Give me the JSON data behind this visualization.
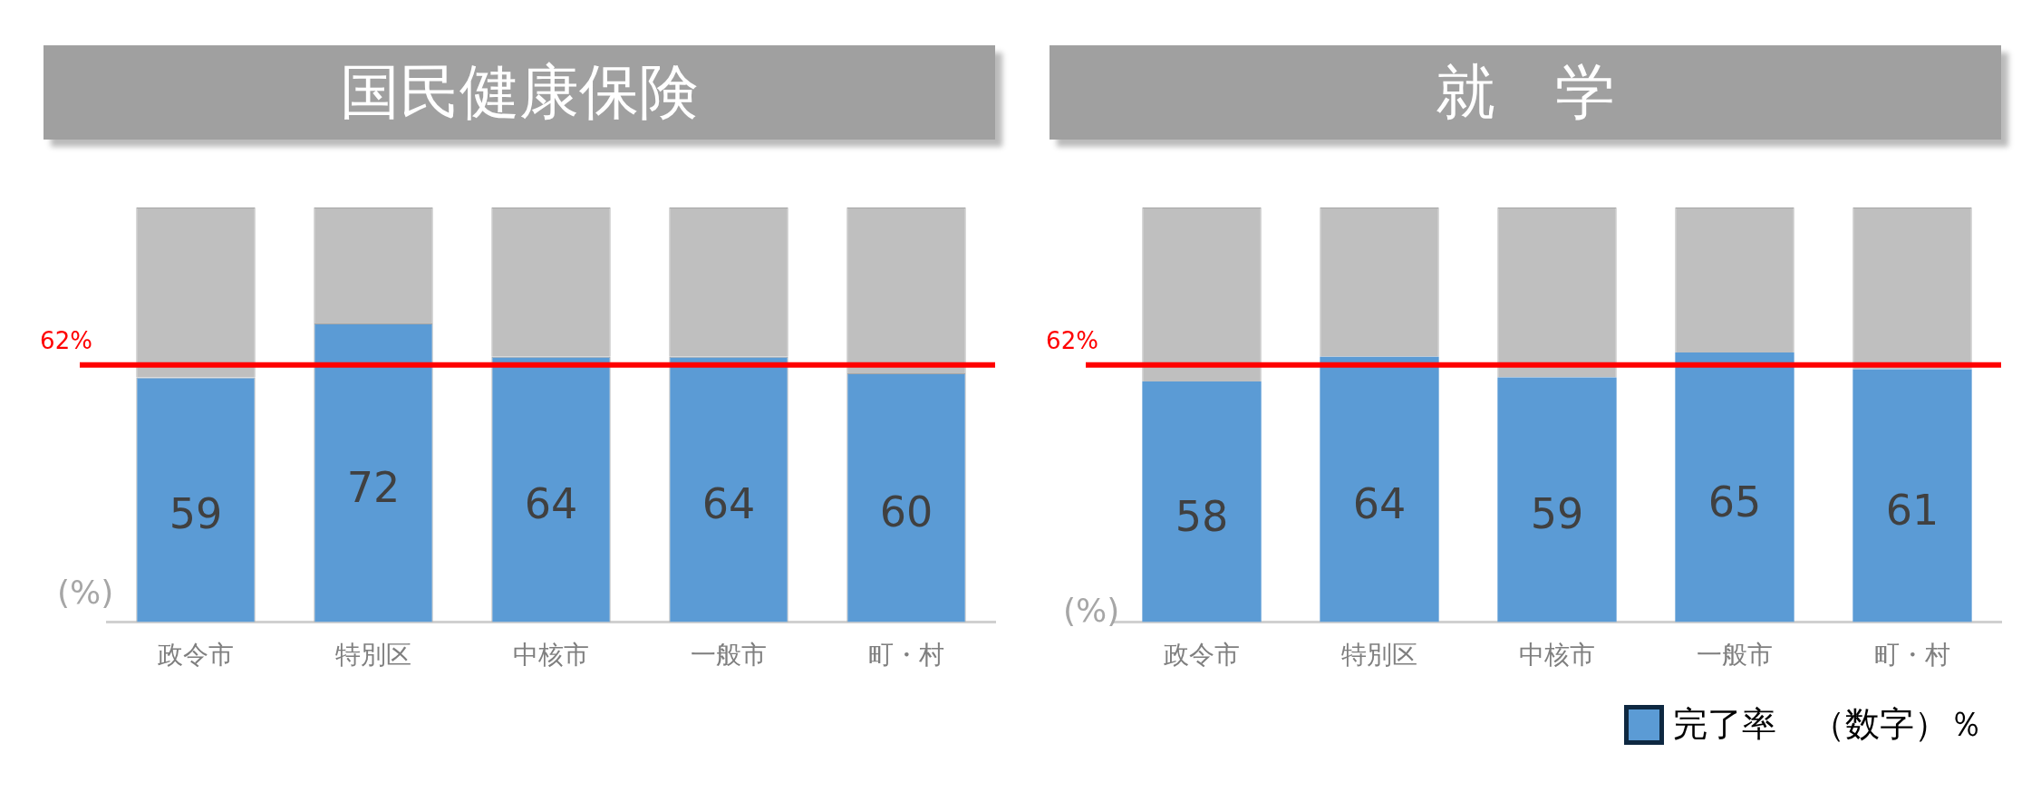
{
  "chart_data": [
    {
      "type": "bar",
      "title": "国民健康保険",
      "ylabel": "(%)",
      "categories": [
        "政令市",
        "特別区",
        "中核市",
        "一般市",
        "町・村"
      ],
      "stacked": true,
      "ylim": [
        0,
        100
      ],
      "legend": false,
      "grid": false,
      "series": [
        {
          "color": "#5b9bd5",
          "values": [
            59,
            72,
            64,
            64,
            60
          ],
          "value_labels": [
            "59",
            "72",
            "64",
            "64",
            "60"
          ]
        },
        {
          "color": "#bfbfbf",
          "values": [
            41,
            28,
            36,
            36,
            40
          ]
        }
      ],
      "ref_lines": [
        {
          "axis": "y",
          "value": 62,
          "label": "62%",
          "color": "#ff0000"
        }
      ]
    },
    {
      "type": "bar",
      "title": "就　学",
      "ylabel": "(%)",
      "categories": [
        "政令市",
        "特別区",
        "中核市",
        "一般市",
        "町・村"
      ],
      "stacked": true,
      "ylim": [
        0,
        100
      ],
      "legend": "bottom right",
      "grid": false,
      "series": [
        {
          "name": "完了率　（数字）％",
          "color": "#5b9bd5",
          "values": [
            58,
            64,
            59,
            65,
            61
          ],
          "value_labels": [
            "58",
            "64",
            "59",
            "65",
            "61"
          ]
        },
        {
          "color": "#bfbfbf",
          "values": [
            42,
            36,
            41,
            35,
            39
          ]
        }
      ],
      "ref_lines": [
        {
          "axis": "y",
          "value": 62,
          "label": "62%",
          "color": "#ff0000"
        }
      ]
    }
  ]
}
